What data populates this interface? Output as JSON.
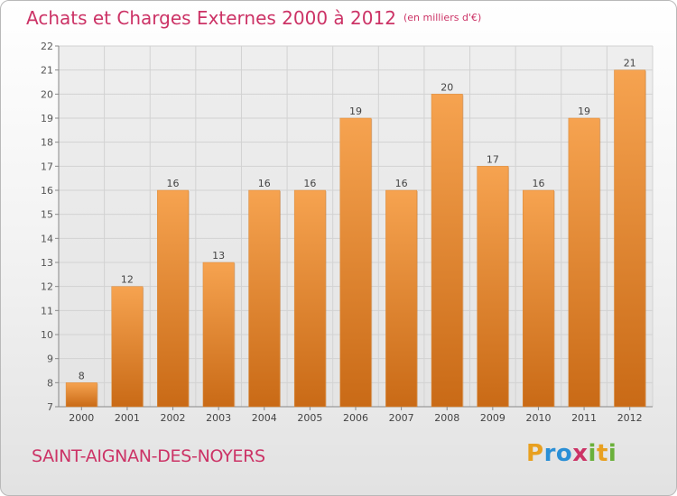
{
  "header": {
    "title": "Achats et Charges Externes 2000 à 2012",
    "unit": "(en milliers d'€)"
  },
  "footer": {
    "city": "SAINT-AIGNAN-DES-NOYERS",
    "logo_letters": [
      "P",
      "r",
      "o",
      "x",
      "i",
      "t",
      "i"
    ],
    "logo_colors": [
      "#e8a020",
      "#2a8fd6",
      "#2a8fd6",
      "#cc3366",
      "#6ab03a",
      "#e8a020",
      "#6ab03a"
    ]
  },
  "colors": {
    "bar_light": "#f6a350",
    "bar_dark": "#c96a16",
    "title": "#cc3366"
  },
  "chart_data": {
    "type": "bar",
    "title": "Achats et Charges Externes 2000 à 2012",
    "categories": [
      "2000",
      "2001",
      "2002",
      "2003",
      "2004",
      "2005",
      "2006",
      "2007",
      "2008",
      "2009",
      "2010",
      "2011",
      "2012"
    ],
    "values": [
      8,
      12,
      16,
      13,
      16,
      16,
      19,
      16,
      20,
      17,
      16,
      19,
      21
    ],
    "ylim": [
      7,
      22
    ],
    "yticks": [
      7,
      8,
      9,
      10,
      11,
      12,
      13,
      14,
      15,
      16,
      17,
      18,
      19,
      20,
      21,
      22
    ],
    "grid": true
  }
}
